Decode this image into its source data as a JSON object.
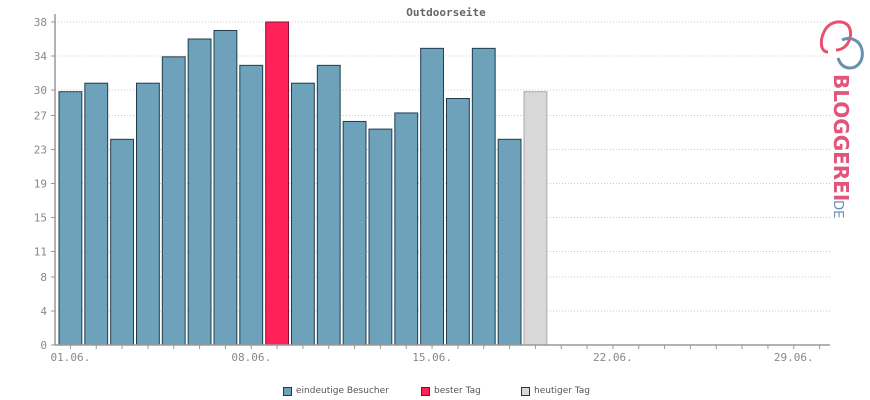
{
  "chart_data": {
    "type": "bar",
    "title": "Outdoorseite",
    "x_tick_labels": [
      "01.06.",
      "08.06.",
      "15.06.",
      "22.06.",
      "29.06."
    ],
    "y_tick_labels": [
      "0",
      "4",
      "8",
      "11",
      "15",
      "19",
      "23",
      "27",
      "30",
      "34",
      "38"
    ],
    "ylim": [
      0,
      38
    ],
    "grid": true,
    "legend_position": "bottom",
    "series": [
      {
        "name": "eindeutige Besucher",
        "color": "#6ea2bb",
        "values": [
          29.8,
          30.8,
          24.2,
          30.8,
          33.9,
          36.0,
          37.0,
          32.9,
          38.0,
          30.8,
          32.9,
          26.3,
          25.4,
          27.3,
          34.9,
          29.0,
          34.9,
          24.2,
          29.8
        ]
      }
    ],
    "best_day_index": 8,
    "today_index": 18,
    "highlight_colors": {
      "best": "#ff2157",
      "today": "#d8d8d8"
    },
    "legend": [
      {
        "label": "eindeutige Besucher",
        "color": "#6ea2bb"
      },
      {
        "label": "bester Tag",
        "color": "#ff2157"
      },
      {
        "label": "heutiger Tag",
        "color": "#d8d8d8"
      }
    ]
  },
  "branding": {
    "logo_text": "BLOGGEREI",
    "logo_suffix": ".DE"
  }
}
